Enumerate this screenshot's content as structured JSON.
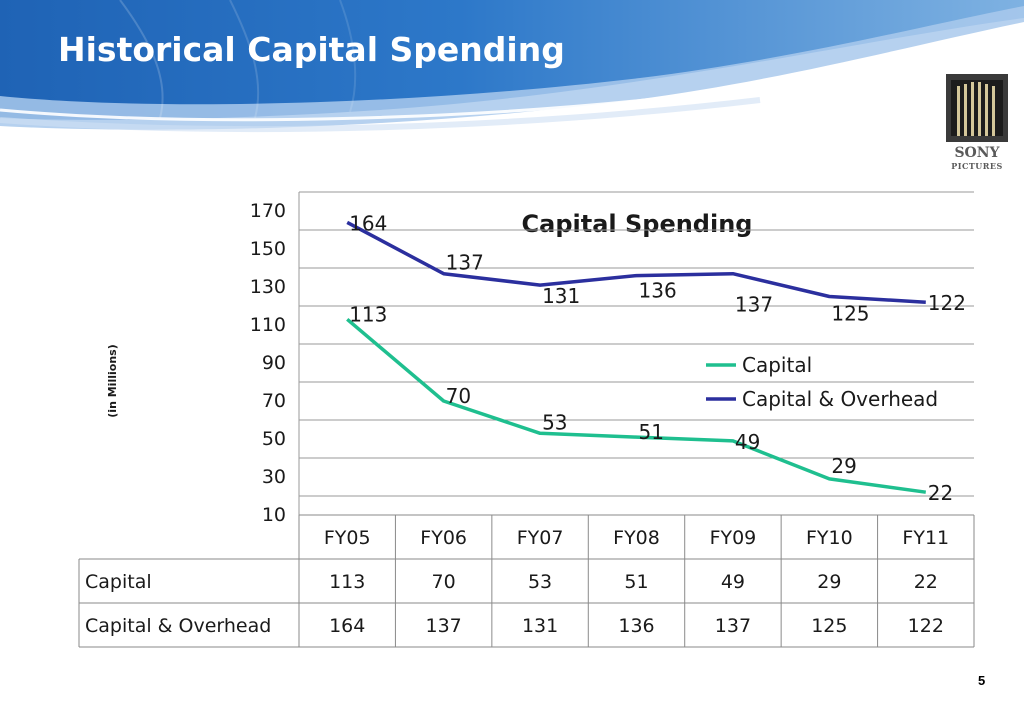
{
  "slide": {
    "title": "Historical Capital Spending",
    "page_number": "5",
    "logo_text": [
      "SONY",
      "PICTURES"
    ]
  },
  "colors": {
    "capital": "#1fbf8f",
    "capital_overhead": "#2b2f9e",
    "banner_dark": "#1a5aa8",
    "banner_light": "#6fa8dc"
  },
  "chart_data": {
    "type": "line",
    "title": "Capital Spending",
    "ylabel": "(in Millions)",
    "xlabel": "",
    "ylim": [
      10,
      180
    ],
    "yticks": [
      "170",
      "150",
      "130",
      "110",
      "90",
      "70",
      "50",
      "30",
      "10"
    ],
    "categories": [
      "FY05",
      "FY06",
      "FY07",
      "FY08",
      "FY09",
      "FY10",
      "FY11"
    ],
    "series": [
      {
        "name": "Capital",
        "values": [
          113,
          70,
          53,
          51,
          49,
          29,
          22
        ]
      },
      {
        "name": "Capital & Overhead",
        "values": [
          164,
          137,
          131,
          136,
          137,
          125,
          122
        ]
      }
    ],
    "legend": "right-inside",
    "grid": true,
    "data_table": true
  }
}
